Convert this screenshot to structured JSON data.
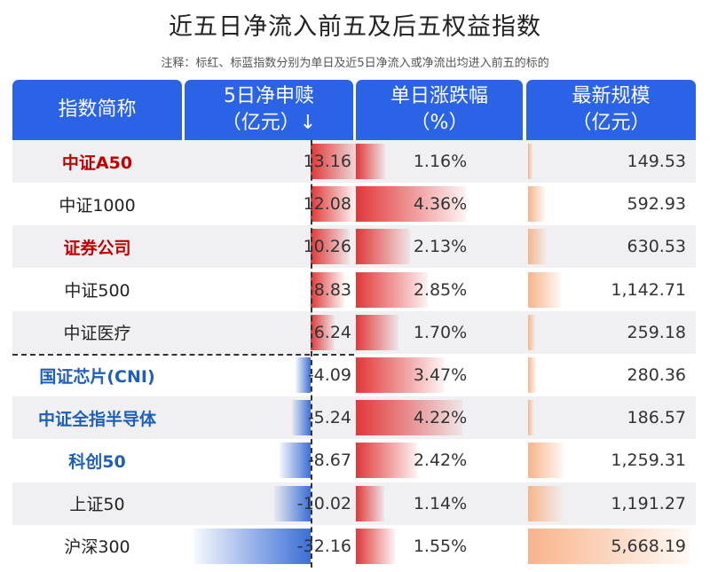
{
  "title": "近五日净流入前五及后五权益指数",
  "note": "注释：标红、标蓝指数分别为单日及近5日净流入或净流出均进入前五的标的",
  "headers": {
    "name": "指数简称",
    "flow_l1": "5日净申赎",
    "flow_l2": "（亿元）↓",
    "chg_l1": "单日涨跌幅",
    "chg_l2": "（%）",
    "size_l1": "最新规模",
    "size_l2": "（亿元）"
  },
  "colors": {
    "header_bg": "#2b63e6",
    "flow_bar": "#e03838",
    "flow_bar_negative": "#3c6fd6",
    "chg_bar": "#e03838",
    "size_bar": "#f7b48a",
    "highlight_red": "#c00000",
    "highlight_blue": "#1f5fb8"
  },
  "chart_data": {
    "type": "table",
    "columns": [
      "指数简称",
      "5日净申赎（亿元）",
      "单日涨跌幅（%）",
      "最新规模（亿元）"
    ],
    "rows": [
      {
        "name": "中证A50",
        "flow": 13.16,
        "flow_label": "13.16",
        "chg": 1.16,
        "chg_label": "1.16%",
        "size": 149.53,
        "size_label": "149.53",
        "highlight": "red"
      },
      {
        "name": "中证1000",
        "flow": 12.08,
        "flow_label": "12.08",
        "chg": 4.36,
        "chg_label": "4.36%",
        "size": 592.93,
        "size_label": "592.93",
        "highlight": "none"
      },
      {
        "name": "证券公司",
        "flow": 10.26,
        "flow_label": "10.26",
        "chg": 2.13,
        "chg_label": "2.13%",
        "size": 630.53,
        "size_label": "630.53",
        "highlight": "red"
      },
      {
        "name": "中证500",
        "flow": 8.83,
        "flow_label": "8.83",
        "chg": 2.85,
        "chg_label": "2.85%",
        "size": 1142.71,
        "size_label": "1,142.71",
        "highlight": "none"
      },
      {
        "name": "中证医疗",
        "flow": 6.24,
        "flow_label": "6.24",
        "chg": 1.7,
        "chg_label": "1.70%",
        "size": 259.18,
        "size_label": "259.18",
        "highlight": "none"
      },
      {
        "name": "国证芯片(CNI)",
        "flow": -4.09,
        "flow_label": "-4.09",
        "chg": 3.47,
        "chg_label": "3.47%",
        "size": 280.36,
        "size_label": "280.36",
        "highlight": "blue"
      },
      {
        "name": "中证全指半导体",
        "flow": -5.24,
        "flow_label": "-5.24",
        "chg": 4.22,
        "chg_label": "4.22%",
        "size": 186.57,
        "size_label": "186.57",
        "highlight": "blue"
      },
      {
        "name": "科创50",
        "flow": -8.67,
        "flow_label": "-8.67",
        "chg": 2.42,
        "chg_label": "2.42%",
        "size": 1259.31,
        "size_label": "1,259.31",
        "highlight": "blue"
      },
      {
        "name": "上证50",
        "flow": -10.02,
        "flow_label": "-10.02",
        "chg": 1.14,
        "chg_label": "1.14%",
        "size": 1191.27,
        "size_label": "1,191.27",
        "highlight": "none"
      },
      {
        "name": "沪深300",
        "flow": -32.16,
        "flow_label": "-32.16",
        "chg": 1.55,
        "chg_label": "1.55%",
        "size": 5668.19,
        "size_label": "5,668.19",
        "highlight": "none"
      }
    ]
  }
}
